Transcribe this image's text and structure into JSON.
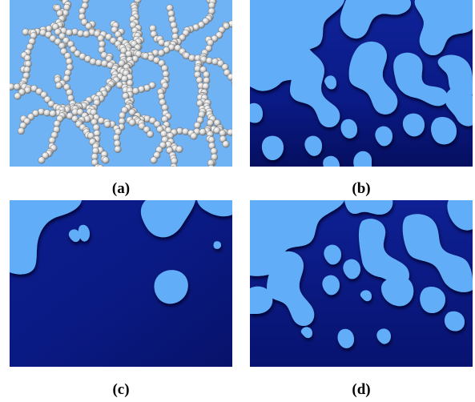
{
  "panels": [
    {
      "id": "a",
      "label": "(a)"
    },
    {
      "id": "b",
      "label": "(b)"
    },
    {
      "id": "c",
      "label": "(c)"
    },
    {
      "id": "d",
      "label": "(d)"
    }
  ],
  "colors": {
    "particle_background": "#6fb3f5",
    "fluid_light": "#62adf8",
    "fluid_dark": "#0a1a8c",
    "fluid_shadow": "#02083e",
    "particle_fill": "#dcdcdc"
  }
}
